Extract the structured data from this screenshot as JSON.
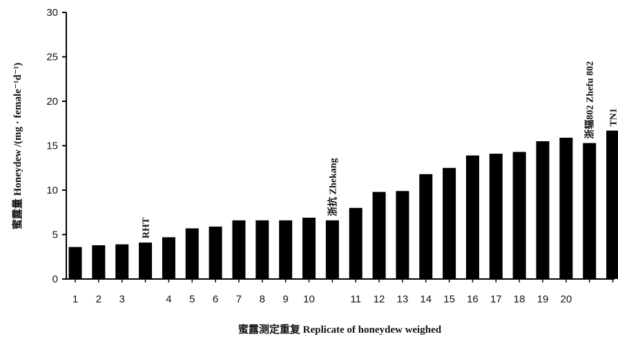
{
  "chart_data": {
    "type": "bar",
    "title": "",
    "xlabel": "蜜露测定重复 Replicate of honeydew weighed",
    "ylabel": "蜜露量 Honeydew /(mg · female⁻¹d⁻¹)",
    "ylim": [
      0,
      30
    ],
    "yticks": [
      0,
      5,
      10,
      15,
      20,
      25,
      30
    ],
    "grid": false,
    "bar_color": "#000000",
    "bars": [
      {
        "x": "1",
        "value": 3.6,
        "annotation": ""
      },
      {
        "x": "2",
        "value": 3.8,
        "annotation": ""
      },
      {
        "x": "3",
        "value": 3.9,
        "annotation": ""
      },
      {
        "x": "",
        "value": 4.1,
        "annotation": "RHT"
      },
      {
        "x": "4",
        "value": 4.7,
        "annotation": ""
      },
      {
        "x": "5",
        "value": 5.7,
        "annotation": ""
      },
      {
        "x": "6",
        "value": 5.9,
        "annotation": ""
      },
      {
        "x": "7",
        "value": 6.6,
        "annotation": ""
      },
      {
        "x": "8",
        "value": 6.6,
        "annotation": ""
      },
      {
        "x": "9",
        "value": 6.6,
        "annotation": ""
      },
      {
        "x": "10",
        "value": 6.9,
        "annotation": ""
      },
      {
        "x": "",
        "value": 6.6,
        "annotation": "浙抗 Zhekang"
      },
      {
        "x": "11",
        "value": 8.0,
        "annotation": ""
      },
      {
        "x": "12",
        "value": 9.8,
        "annotation": ""
      },
      {
        "x": "13",
        "value": 9.9,
        "annotation": ""
      },
      {
        "x": "14",
        "value": 11.8,
        "annotation": ""
      },
      {
        "x": "15",
        "value": 12.5,
        "annotation": ""
      },
      {
        "x": "16",
        "value": 13.9,
        "annotation": ""
      },
      {
        "x": "17",
        "value": 14.1,
        "annotation": ""
      },
      {
        "x": "18",
        "value": 14.3,
        "annotation": ""
      },
      {
        "x": "19",
        "value": 15.5,
        "annotation": ""
      },
      {
        "x": "20",
        "value": 15.9,
        "annotation": ""
      },
      {
        "x": "",
        "value": 15.3,
        "annotation": "浙辐802 Zhefu 802"
      },
      {
        "x": "",
        "value": 16.7,
        "annotation": "TN1"
      }
    ]
  }
}
